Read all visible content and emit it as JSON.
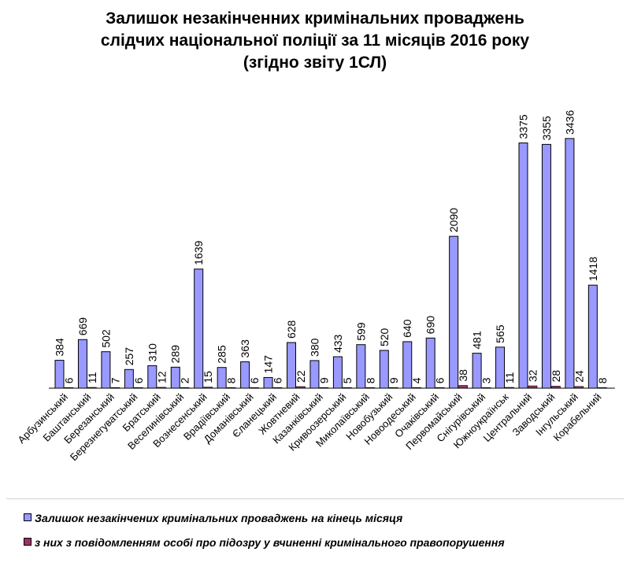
{
  "chart_data": {
    "type": "bar",
    "title_lines": [
      "Залишок незакінченних кримінальних проваджень",
      "слідчих національної  поліції за 11 місяців 2016 року",
      "(згідно звіту 1СЛ)"
    ],
    "categories": [
      "Арбузинський",
      "Баштанський",
      "Березанський",
      "Березнегуватський",
      "Братський",
      "Веселинівський",
      "Вознесенський",
      "Врадіївський",
      "Доманівський",
      "Єланецький",
      "Жовтневий",
      "Казанківський",
      "Кривоозерський",
      "Миколаївський",
      "Новобузький",
      "Новоодеський",
      "Очаківський",
      "Первомайський",
      "Снігурівський",
      "Южноукраїнськ",
      "Центральний",
      "Заводський",
      "Інгульський",
      "Корабельний"
    ],
    "series": [
      {
        "name": "Залишок незакінчених кримінальних проваджень на кінець місяця",
        "color": "#9999ff",
        "values": [
          384,
          669,
          502,
          257,
          310,
          289,
          1639,
          285,
          363,
          147,
          628,
          380,
          433,
          599,
          520,
          640,
          690,
          2090,
          481,
          565,
          3375,
          3355,
          3436,
          1418
        ]
      },
      {
        "name": "з них з повідомленням особі про підозру у вчиненні кримінального правопорушення",
        "color": "#993366",
        "values": [
          6,
          11,
          7,
          6,
          12,
          2,
          15,
          8,
          6,
          6,
          22,
          9,
          5,
          8,
          9,
          4,
          6,
          38,
          3,
          11,
          32,
          28,
          24,
          8
        ]
      }
    ],
    "ylim": [
      0,
      3500
    ],
    "xlabel": "",
    "ylabel": ""
  }
}
